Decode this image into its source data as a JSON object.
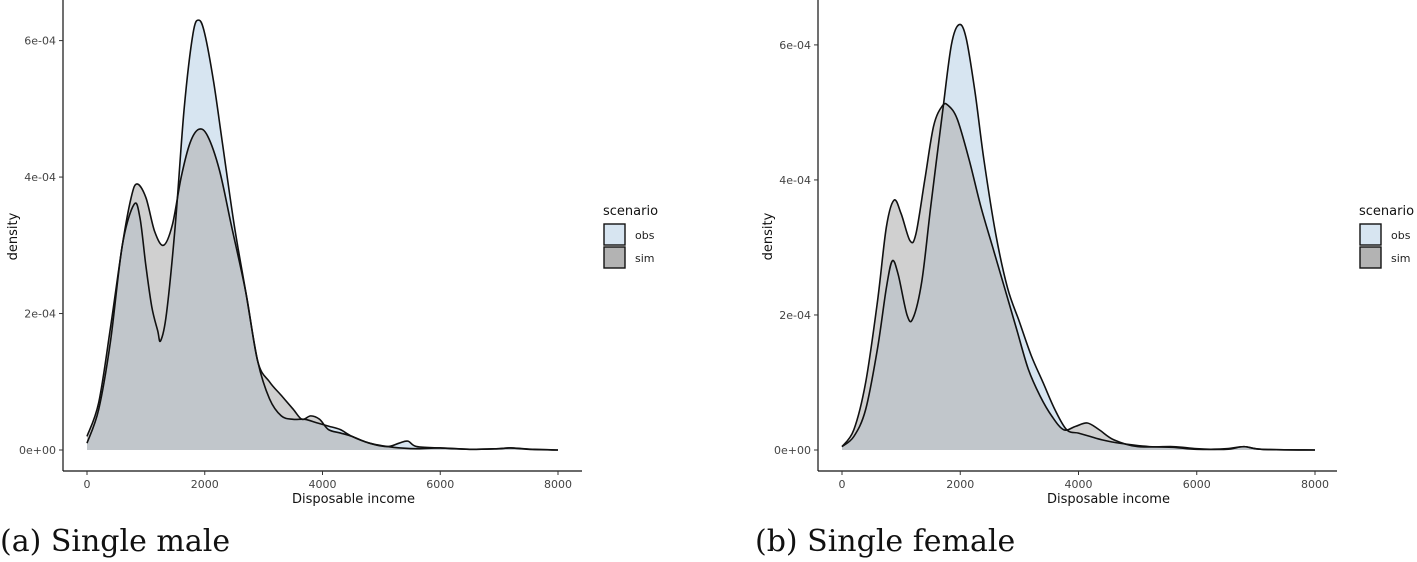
{
  "captions": {
    "a": "(a) Single male",
    "b": "(b) Single female"
  },
  "colors": {
    "obs": "#d7e5f1",
    "sim": "#b3b3b3",
    "overlap": "#a8b6be",
    "line": "#111111"
  },
  "chart_data": [
    {
      "type": "area",
      "panel": "a",
      "title": "",
      "xlabel": "Disposable income",
      "ylabel": "density",
      "xlim": [
        0,
        8000
      ],
      "ylim": [
        0,
        0.00063
      ],
      "xticks": [
        0,
        2000,
        4000,
        6000,
        8000
      ],
      "xtick_labels": [
        "0",
        "2000",
        "4000",
        "6000",
        "8000"
      ],
      "yticks": [
        0,
        0.0002,
        0.0004,
        0.0006
      ],
      "ytick_labels": [
        "0e+00",
        "2e-04",
        "4e-04",
        "6e-04"
      ],
      "grid": false,
      "legend": {
        "title": "scenario",
        "position": "right",
        "entries": [
          "obs",
          "sim"
        ]
      },
      "series": [
        {
          "name": "obs",
          "points": [
            [
              0,
              1e-05
            ],
            [
              200,
              6e-05
            ],
            [
              400,
              0.00016
            ],
            [
              600,
              0.0003
            ],
            [
              800,
              0.00036
            ],
            [
              900,
              0.00034
            ],
            [
              1000,
              0.00027
            ],
            [
              1100,
              0.00021
            ],
            [
              1200,
              0.000175
            ],
            [
              1250,
              0.00016
            ],
            [
              1350,
              0.0002
            ],
            [
              1500,
              0.00033
            ],
            [
              1650,
              0.0005
            ],
            [
              1800,
              0.00061
            ],
            [
              1900,
              0.00063
            ],
            [
              2000,
              0.00061
            ],
            [
              2150,
              0.00054
            ],
            [
              2300,
              0.00045
            ],
            [
              2500,
              0.00033
            ],
            [
              2700,
              0.00023
            ],
            [
              2900,
              0.00013
            ],
            [
              3100,
              7.5e-05
            ],
            [
              3300,
              5e-05
            ],
            [
              3500,
              4.5e-05
            ],
            [
              3700,
              4.5e-05
            ],
            [
              3900,
              4e-05
            ],
            [
              4100,
              3.5e-05
            ],
            [
              4300,
              3e-05
            ],
            [
              4500,
              2e-05
            ],
            [
              4800,
              1e-05
            ],
            [
              5100,
              5e-06
            ],
            [
              5300,
              1e-05
            ],
            [
              5450,
              1.3e-05
            ],
            [
              5600,
              5e-06
            ],
            [
              6000,
              3e-06
            ],
            [
              6500,
              1e-06
            ],
            [
              7000,
              2e-06
            ],
            [
              7200,
              3e-06
            ],
            [
              7500,
              1e-06
            ],
            [
              8000,
              0.0
            ]
          ]
        },
        {
          "name": "sim",
          "points": [
            [
              0,
              2e-05
            ],
            [
              200,
              7e-05
            ],
            [
              400,
              0.00018
            ],
            [
              600,
              0.0003
            ],
            [
              750,
              0.00037
            ],
            [
              850,
              0.00039
            ],
            [
              1000,
              0.00037
            ],
            [
              1150,
              0.00032
            ],
            [
              1300,
              0.0003
            ],
            [
              1450,
              0.00033
            ],
            [
              1600,
              0.0004
            ],
            [
              1750,
              0.00045
            ],
            [
              1900,
              0.00047
            ],
            [
              2050,
              0.00046
            ],
            [
              2250,
              0.00041
            ],
            [
              2450,
              0.00033
            ],
            [
              2700,
              0.00023
            ],
            [
              2900,
              0.00013
            ],
            [
              3100,
              0.0001
            ],
            [
              3300,
              8e-05
            ],
            [
              3500,
              6e-05
            ],
            [
              3650,
              4.5e-05
            ],
            [
              3800,
              5e-05
            ],
            [
              3950,
              4.5e-05
            ],
            [
              4100,
              3e-05
            ],
            [
              4300,
              2.5e-05
            ],
            [
              4500,
              2e-05
            ],
            [
              4800,
              1e-05
            ],
            [
              5200,
              4e-06
            ],
            [
              5600,
              2e-06
            ],
            [
              6000,
              3e-06
            ],
            [
              6500,
              1e-06
            ],
            [
              7000,
              2e-06
            ],
            [
              7200,
              3e-06
            ],
            [
              7600,
              1e-06
            ],
            [
              8000,
              0.0
            ]
          ]
        }
      ]
    },
    {
      "type": "area",
      "panel": "b",
      "title": "",
      "xlabel": "Disposable income",
      "ylabel": "density",
      "xlim": [
        0,
        8000
      ],
      "ylim": [
        0,
        0.00063
      ],
      "xticks": [
        0,
        2000,
        4000,
        6000,
        8000
      ],
      "xtick_labels": [
        "0",
        "2000",
        "4000",
        "6000",
        "8000"
      ],
      "yticks": [
        0,
        0.0002,
        0.0004,
        0.0006
      ],
      "ytick_labels": [
        "0e+00",
        "2e-04",
        "4e-04",
        "6e-04"
      ],
      "grid": false,
      "legend": {
        "title": "scenario",
        "position": "right",
        "entries": [
          "obs",
          "sim"
        ]
      },
      "series": [
        {
          "name": "obs",
          "points": [
            [
              0,
              5e-06
            ],
            [
              200,
              2e-05
            ],
            [
              400,
              6e-05
            ],
            [
              600,
              0.00015
            ],
            [
              750,
              0.00024
            ],
            [
              850,
              0.00028
            ],
            [
              950,
              0.00026
            ],
            [
              1100,
              0.0002
            ],
            [
              1200,
              0.000195
            ],
            [
              1350,
              0.00025
            ],
            [
              1500,
              0.00036
            ],
            [
              1700,
              0.0005
            ],
            [
              1850,
              0.0006
            ],
            [
              1980,
              0.00063
            ],
            [
              2100,
              0.00061
            ],
            [
              2250,
              0.00053
            ],
            [
              2400,
              0.00043
            ],
            [
              2600,
              0.00032
            ],
            [
              2800,
              0.00024
            ],
            [
              3000,
              0.00019
            ],
            [
              3200,
              0.00014
            ],
            [
              3400,
              0.0001
            ],
            [
              3600,
              6e-05
            ],
            [
              3800,
              3e-05
            ],
            [
              4000,
              2.5e-05
            ],
            [
              4200,
              2e-05
            ],
            [
              4400,
              1.5e-05
            ],
            [
              4700,
              1e-05
            ],
            [
              5200,
              5e-06
            ],
            [
              5600,
              4e-06
            ],
            [
              6000,
              1e-06
            ],
            [
              6500,
              2e-06
            ],
            [
              6800,
              5e-06
            ],
            [
              7100,
              1e-06
            ],
            [
              8000,
              0.0
            ]
          ]
        },
        {
          "name": "sim",
          "points": [
            [
              0,
              5e-06
            ],
            [
              200,
              3e-05
            ],
            [
              400,
              0.0001
            ],
            [
              600,
              0.00022
            ],
            [
              750,
              0.00033
            ],
            [
              880,
              0.00037
            ],
            [
              1000,
              0.00035
            ],
            [
              1150,
              0.00031
            ],
            [
              1250,
              0.00032
            ],
            [
              1400,
              0.0004
            ],
            [
              1550,
              0.00048
            ],
            [
              1700,
              0.00051
            ],
            [
              1800,
              0.00051
            ],
            [
              1950,
              0.00049
            ],
            [
              2150,
              0.00043
            ],
            [
              2350,
              0.00036
            ],
            [
              2550,
              0.0003
            ],
            [
              2750,
              0.00024
            ],
            [
              2950,
              0.00018
            ],
            [
              3150,
              0.00012
            ],
            [
              3350,
              8e-05
            ],
            [
              3550,
              5e-05
            ],
            [
              3750,
              3e-05
            ],
            [
              3950,
              3.5e-05
            ],
            [
              4150,
              4e-05
            ],
            [
              4350,
              3e-05
            ],
            [
              4600,
              1.5e-05
            ],
            [
              5000,
              5e-06
            ],
            [
              5600,
              5e-06
            ],
            [
              6000,
              2e-06
            ],
            [
              6500,
              1e-06
            ],
            [
              6800,
              5e-06
            ],
            [
              7100,
              1e-06
            ],
            [
              8000,
              0.0
            ]
          ]
        }
      ]
    }
  ]
}
